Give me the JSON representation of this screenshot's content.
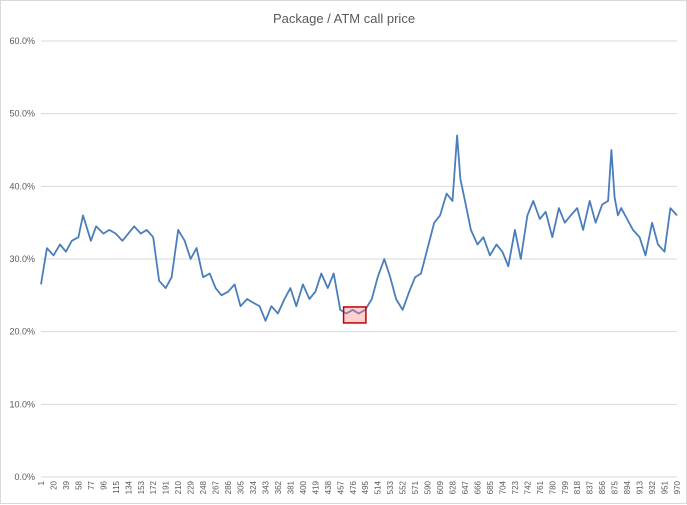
{
  "chart_data": {
    "type": "line",
    "title": "Package / ATM call price",
    "xlabel": "",
    "ylabel": "",
    "x_range": [
      1,
      970
    ],
    "ylim": [
      0,
      60
    ],
    "y_ticks": [
      "0.0%",
      "10.0%",
      "20.0%",
      "30.0%",
      "40.0%",
      "50.0%",
      "60.0%"
    ],
    "x_ticks": [
      "1",
      "20",
      "39",
      "58",
      "77",
      "96",
      "115",
      "134",
      "153",
      "172",
      "191",
      "210",
      "229",
      "248",
      "267",
      "286",
      "305",
      "324",
      "343",
      "362",
      "381",
      "400",
      "419",
      "438",
      "457",
      "476",
      "495",
      "514",
      "533",
      "552",
      "571",
      "590",
      "609",
      "628",
      "647",
      "666",
      "685",
      "704",
      "723",
      "742",
      "761",
      "780",
      "799",
      "818",
      "837",
      "856",
      "875",
      "894",
      "913",
      "932",
      "951",
      "970"
    ],
    "grid": "horizontal",
    "legend": "none",
    "line_color": "#4a7ebb",
    "highlight": {
      "x_range": [
        462,
        496
      ],
      "y_range": [
        21.2,
        23.4
      ],
      "color": "#c00000"
    },
    "series": [
      {
        "x": [
          1,
          10,
          20,
          30,
          39,
          48,
          58,
          65,
          77,
          85,
          96,
          105,
          115,
          125,
          134,
          143,
          153,
          162,
          172,
          181,
          191,
          200,
          210,
          220,
          229,
          238,
          248,
          258,
          267,
          276,
          286,
          296,
          305,
          315,
          324,
          334,
          343,
          352,
          362,
          372,
          381,
          390,
          400,
          410,
          419,
          428,
          438,
          447,
          457,
          466,
          476,
          485,
          495,
          505,
          514,
          524,
          533,
          542,
          552,
          562,
          571,
          580,
          590,
          600,
          609,
          619,
          628,
          635,
          640,
          647,
          656,
          666,
          675,
          685,
          695,
          704,
          713,
          723,
          732,
          742,
          751,
          761,
          770,
          780,
          790,
          799,
          808,
          818,
          827,
          837,
          846,
          856,
          865,
          870,
          875,
          880,
          885,
          894,
          903,
          913,
          922,
          932,
          941,
          951,
          960,
          970
        ],
        "y": [
          26.5,
          31.5,
          30.5,
          32,
          31,
          32.5,
          33,
          36,
          32.5,
          34.5,
          33.5,
          34,
          33.5,
          32.5,
          33.5,
          34.5,
          33.5,
          34,
          33,
          27,
          26,
          27.5,
          34,
          32.5,
          30,
          31.5,
          27.5,
          28,
          26,
          25,
          25.5,
          26.5,
          23.5,
          24.5,
          24,
          23.5,
          21.5,
          23.5,
          22.5,
          24.5,
          26,
          23.5,
          26.5,
          24.5,
          25.5,
          28,
          26,
          28,
          23,
          22.5,
          23,
          22.5,
          23,
          24.5,
          27.5,
          30,
          27.5,
          24.5,
          23,
          25.5,
          27.5,
          28,
          31.5,
          35,
          36,
          39,
          38,
          47,
          41,
          38,
          34,
          32,
          33,
          30.5,
          32,
          31,
          29,
          34,
          30,
          36,
          38,
          35.5,
          36.5,
          33,
          37,
          35,
          36,
          37,
          34,
          38,
          35,
          37.5,
          38,
          45,
          38.5,
          36,
          37,
          35.5,
          34,
          33,
          30.5,
          35,
          32,
          31,
          37,
          36
        ]
      }
    ]
  }
}
